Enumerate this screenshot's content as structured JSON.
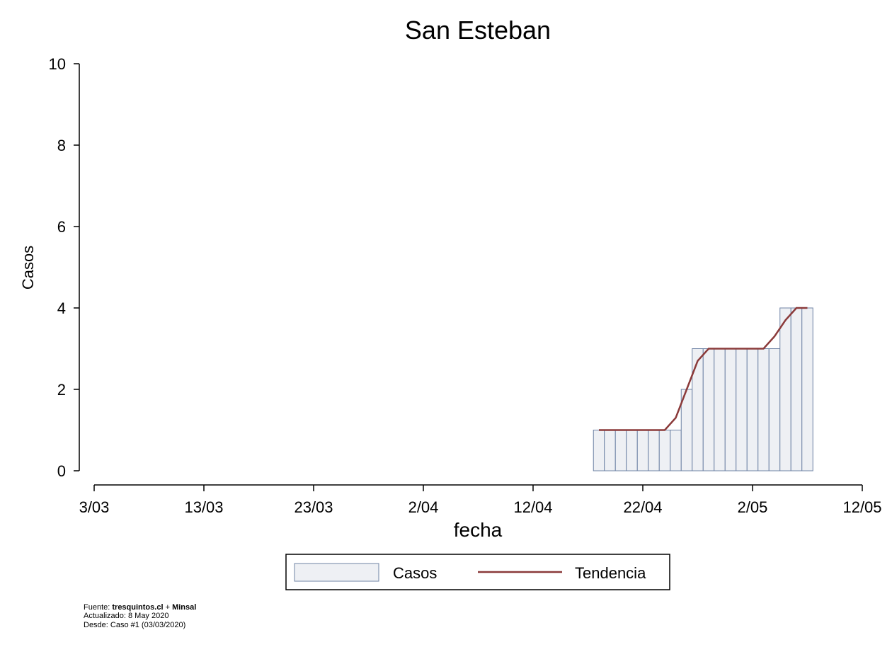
{
  "chart_data": {
    "type": "bar-line",
    "title": "San Esteban",
    "x_label": "fecha",
    "y_label": "Casos",
    "x": [
      "18/04",
      "19/04",
      "20/04",
      "21/04",
      "22/04",
      "23/04",
      "24/04",
      "25/04",
      "26/04",
      "27/04",
      "28/04",
      "29/04",
      "30/04",
      "1/05",
      "2/05",
      "3/05",
      "4/05",
      "5/05",
      "6/05",
      "7/05"
    ],
    "series": [
      {
        "name": "Casos",
        "type": "bar",
        "color": "#eef0f4",
        "edge_color": "#6f83a5",
        "values": [
          1,
          1,
          1,
          1,
          1,
          1,
          1,
          1,
          2,
          3,
          3,
          3,
          3,
          3,
          3,
          3,
          3,
          4,
          4,
          4
        ]
      },
      {
        "name": "Tendencia",
        "type": "line",
        "color": "#8b3a3a",
        "values": [
          1,
          1,
          1,
          1,
          1,
          1,
          1,
          1.3,
          2,
          2.7,
          3,
          3,
          3,
          3,
          3,
          3,
          3.3,
          3.7,
          4,
          4
        ]
      }
    ],
    "xlim": [
      "3/03",
      "12/05"
    ],
    "xticks": [
      "3/03",
      "13/03",
      "23/03",
      "2/04",
      "12/04",
      "22/04",
      "2/05",
      "12/05"
    ],
    "ylim": [
      0,
      10
    ],
    "yticks": [
      0,
      2,
      4,
      6,
      8,
      10
    ],
    "grid": false,
    "legend": "bottom",
    "footnote": {
      "source_prefix": "Fuente:",
      "source_1": "tresquintos.cl",
      "source_join": "+",
      "source_2": "Minsal",
      "updated": "Actualizado: 8 May 2020",
      "since": "Desde: Caso #1  (03/03/2020)"
    }
  }
}
